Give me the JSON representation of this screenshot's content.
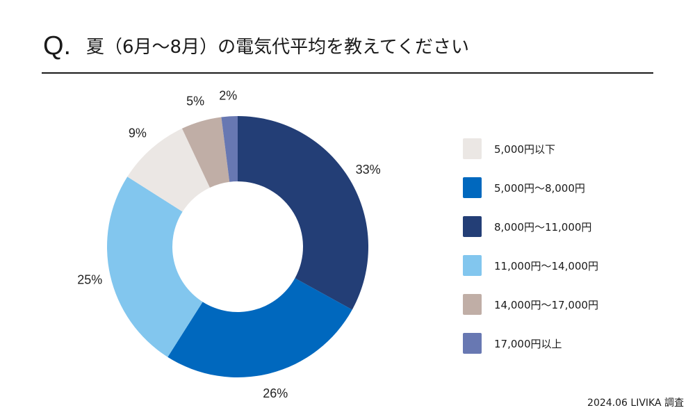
{
  "header": {
    "q_mark": "Q.",
    "title": "夏（6月〜8月）の電気代平均を教えてください"
  },
  "chart_data": {
    "type": "pie",
    "style": "donut",
    "categories": [
      "8,000円〜11,000円",
      "5,000円〜8,000円",
      "11,000円〜14,000円",
      "5,000円以下",
      "14,000円〜17,000円",
      "17,000円以上"
    ],
    "values": [
      33,
      26,
      25,
      9,
      5,
      2
    ],
    "labels": [
      "33%",
      "26%",
      "25%",
      "9%",
      "5%",
      "2%"
    ],
    "colors": [
      "#233e76",
      "#0068be",
      "#82c6ee",
      "#ebe7e4",
      "#c0aea6",
      "#6878b2"
    ],
    "start": "12 o'clock, clockwise",
    "legend_position": "right"
  },
  "legend": {
    "items": [
      {
        "label": "5,000円以下",
        "color": "#ebe7e4"
      },
      {
        "label": "5,000円〜8,000円",
        "color": "#0068be"
      },
      {
        "label": "8,000円〜11,000円",
        "color": "#233e76"
      },
      {
        "label": "11,000円〜14,000円",
        "color": "#82c6ee"
      },
      {
        "label": "14,000円〜17,000円",
        "color": "#c0aea6"
      },
      {
        "label": "17,000円以上",
        "color": "#6878b2"
      }
    ]
  },
  "footer": {
    "source": "2024.06 LIVIKA 調査"
  }
}
